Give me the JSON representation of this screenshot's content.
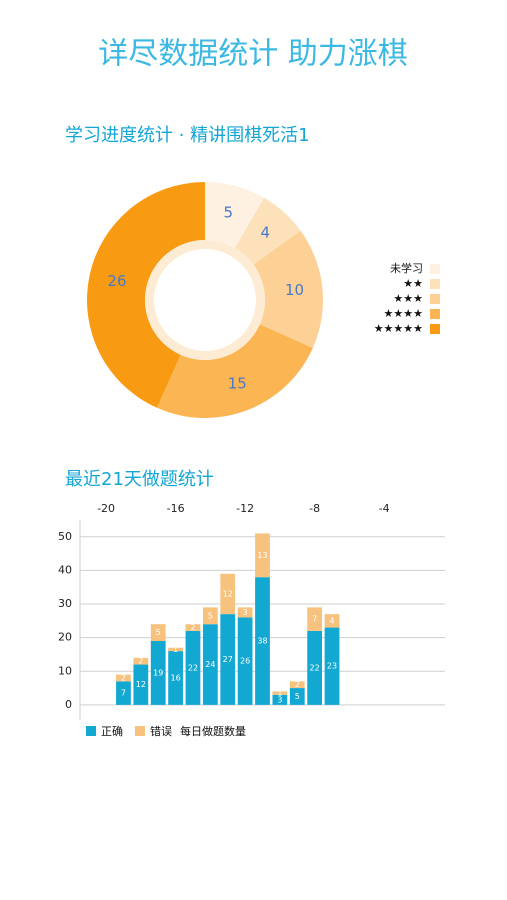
{
  "title": "详尽数据统计 助力涨棋",
  "chart_data": [
    {
      "type": "pie",
      "title": "学习进度统计 · 精讲围棋死活1",
      "categories": [
        "未学习",
        "★★",
        "★★★",
        "★★★★",
        "★★★★★"
      ],
      "values": [
        5,
        4,
        10,
        15,
        26
      ],
      "colors": [
        "#fef1e1",
        "#fde1bb",
        "#fdd096",
        "#fbb552",
        "#f99b12"
      ],
      "legend": "right"
    },
    {
      "type": "bar",
      "title": "最近21天做题统计",
      "stacked": true,
      "ylabel": "每日做题数量",
      "x": [
        -19,
        -18,
        -17,
        -16,
        -15,
        -14,
        -13,
        -12,
        -11,
        -10,
        -9,
        -8,
        -7
      ],
      "series": [
        {
          "name": "正确",
          "color": "#12a8d2",
          "values": [
            7,
            12,
            19,
            16,
            22,
            24,
            27,
            26,
            38,
            3,
            5,
            22,
            23
          ]
        },
        {
          "name": "错误",
          "color": "#f6c27e",
          "values": [
            2,
            2,
            5,
            1,
            2,
            5,
            12,
            3,
            13,
            1,
            2,
            7,
            4
          ]
        }
      ],
      "xlim": [
        -21.5,
        -0.5
      ],
      "xticks": [
        -20,
        -16,
        -12,
        -8,
        -4
      ],
      "ylim": [
        -4.5,
        55
      ],
      "yticks": [
        0,
        10,
        20,
        30,
        40,
        50
      ],
      "grid": true,
      "legend": "bottom"
    }
  ]
}
